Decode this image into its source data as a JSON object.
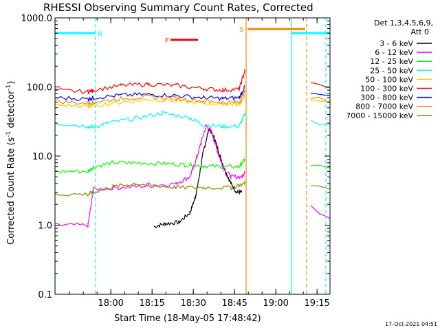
{
  "chart_data": {
    "type": "line",
    "title": "RHESSI Observing Summary Count Rates, Corrected",
    "xlabel": "Start Time (18-May-05 17:48:42)",
    "ylabel_main": "Corrected Count Rate (s",
    "ylabel_sup1": "-1",
    "ylabel_mid": " detector",
    "ylabel_sup2": "-1",
    "ylabel_end": ")",
    "y_scale": "log",
    "ylim": [
      0.1,
      1000
    ],
    "xlim": [
      -9,
      91
    ],
    "x_unit": "minutes after 17:48:42",
    "x_ticks": [
      {
        "v": 11.3,
        "label": "18:00"
      },
      {
        "v": 26.3,
        "label": "18:15"
      },
      {
        "v": 41.3,
        "label": "18:30"
      },
      {
        "v": 56.3,
        "label": "18:45"
      },
      {
        "v": 71.3,
        "label": "19:00"
      },
      {
        "v": 86.3,
        "label": "19:15"
      }
    ],
    "y_ticks": [
      {
        "v": 0.1,
        "label": "0.1"
      },
      {
        "v": 1,
        "label": "1.0"
      },
      {
        "v": 10,
        "label": "10.0"
      },
      {
        "v": 100,
        "label": "100.0"
      },
      {
        "v": 1000,
        "label": "1000.0"
      }
    ],
    "legend_header": [
      "Det 1,3,4,5,6,9,",
      "Att 0"
    ],
    "series": [
      {
        "name": "3 - 6 keV",
        "color": "#000000",
        "points": [
          [
            27,
            0.95
          ],
          [
            31,
            1.05
          ],
          [
            36,
            1.1
          ],
          [
            40,
            1.5
          ],
          [
            42,
            2.5
          ],
          [
            43,
            4
          ],
          [
            45,
            12
          ],
          [
            47,
            25
          ],
          [
            49,
            18
          ],
          [
            51,
            10
          ],
          [
            53,
            6
          ],
          [
            55,
            4
          ],
          [
            57,
            3
          ],
          [
            59,
            3
          ]
        ]
      },
      {
        "name": "6 - 12 keV",
        "color": "#ff00ff",
        "points": [
          [
            -9,
            1.0
          ],
          [
            3,
            1.0
          ],
          [
            5,
            3.3
          ],
          [
            15,
            3.5
          ],
          [
            25,
            3.7
          ],
          [
            35,
            4
          ],
          [
            40,
            5
          ],
          [
            42,
            8
          ],
          [
            44,
            15
          ],
          [
            46,
            28
          ],
          [
            48,
            22
          ],
          [
            50,
            12
          ],
          [
            52,
            7
          ],
          [
            55,
            5
          ],
          [
            59,
            5
          ],
          [
            60,
            6
          ],
          [
            96,
            1.0
          ],
          [
            100,
            1.0
          ]
        ]
      },
      {
        "name": "12 - 25 keV",
        "color": "#00ff00",
        "points": [
          [
            -9,
            6
          ],
          [
            3,
            6
          ],
          [
            5,
            7
          ],
          [
            12,
            8
          ],
          [
            20,
            8
          ],
          [
            30,
            7.8
          ],
          [
            38,
            7.5
          ],
          [
            45,
            7.2
          ],
          [
            52,
            7
          ],
          [
            58,
            7
          ],
          [
            60,
            9
          ],
          [
            96,
            6.5
          ],
          [
            100,
            6
          ]
        ]
      },
      {
        "name": "25 - 50 keV",
        "color": "#00ffff",
        "points": [
          [
            -9,
            30
          ],
          [
            3,
            27
          ],
          [
            5,
            26
          ],
          [
            10,
            30
          ],
          [
            20,
            35
          ],
          [
            30,
            42
          ],
          [
            40,
            36
          ],
          [
            45,
            28
          ],
          [
            52,
            27
          ],
          [
            58,
            27
          ],
          [
            60,
            40
          ],
          [
            96,
            28
          ],
          [
            100,
            25
          ]
        ]
      },
      {
        "name": "50 - 100 keV",
        "color": "#ffcc00",
        "points": [
          [
            -9,
            55
          ],
          [
            3,
            52
          ],
          [
            5,
            54
          ],
          [
            15,
            60
          ],
          [
            25,
            66
          ],
          [
            35,
            63
          ],
          [
            45,
            58
          ],
          [
            52,
            57
          ],
          [
            58,
            56
          ],
          [
            60,
            75
          ],
          [
            96,
            55
          ],
          [
            100,
            52
          ]
        ]
      },
      {
        "name": "100 - 300 keV",
        "color": "#ff0000",
        "points": [
          [
            -9,
            90
          ],
          [
            3,
            85
          ],
          [
            5,
            90
          ],
          [
            15,
            105
          ],
          [
            25,
            110
          ],
          [
            35,
            105
          ],
          [
            45,
            95
          ],
          [
            52,
            90
          ],
          [
            58,
            93
          ],
          [
            60,
            170
          ],
          [
            96,
            92
          ],
          [
            100,
            85
          ]
        ]
      },
      {
        "name": "300 - 800 keV",
        "color": "#0000ff",
        "points": [
          [
            -9,
            70
          ],
          [
            3,
            67
          ],
          [
            5,
            70
          ],
          [
            15,
            76
          ],
          [
            25,
            78
          ],
          [
            35,
            75
          ],
          [
            45,
            70
          ],
          [
            52,
            68
          ],
          [
            58,
            70
          ],
          [
            60,
            100
          ],
          [
            96,
            70
          ],
          [
            100,
            65
          ]
        ]
      },
      {
        "name": "800 - 7000 keV",
        "color": "#ff8800",
        "points": [
          [
            -9,
            62
          ],
          [
            3,
            58
          ],
          [
            5,
            60
          ],
          [
            15,
            68
          ],
          [
            25,
            72
          ],
          [
            35,
            68
          ],
          [
            45,
            63
          ],
          [
            52,
            60
          ],
          [
            58,
            60
          ],
          [
            60,
            85
          ],
          [
            96,
            62
          ],
          [
            100,
            58
          ]
        ]
      },
      {
        "name": "7000 - 15000 keV",
        "color": "#888800",
        "points": [
          [
            -9,
            2.8
          ],
          [
            3,
            2.8
          ],
          [
            5,
            3
          ],
          [
            12,
            3.6
          ],
          [
            20,
            4
          ],
          [
            28,
            3.7
          ],
          [
            35,
            3.5
          ],
          [
            45,
            3.5
          ],
          [
            55,
            3.5
          ],
          [
            60,
            4
          ],
          [
            96,
            3.5
          ],
          [
            100,
            3
          ]
        ]
      }
    ],
    "flag_bars": [
      {
        "label": "N",
        "color": "#00ffff",
        "y": 600,
        "x0": -9,
        "x1": 5.7,
        "label_x": 6.5
      },
      {
        "label": "N",
        "color": "#00ffff",
        "y": 600,
        "x0": 77,
        "x1": 91,
        "label_x": null
      },
      {
        "label": "F",
        "color": "#ff0000",
        "y": 480,
        "x0": 33,
        "x1": 43,
        "label_x": 31
      },
      {
        "label": "S",
        "color": "#ff8800",
        "y": 690,
        "x0": 61,
        "x1": 82,
        "label_x": 58
      }
    ],
    "vlines": [
      {
        "x": -9,
        "color": "#00ffff",
        "dash": false
      },
      {
        "x": 5.7,
        "color": "#00ffff",
        "dash": true
      },
      {
        "x": 60.5,
        "color": "#ff8800",
        "dash": false
      },
      {
        "x": 77,
        "color": "#00ffff",
        "dash": false
      },
      {
        "x": 82.5,
        "color": "#ff8800",
        "dash": true
      },
      {
        "x": 89.5,
        "color": "#00ffff",
        "dash": true
      }
    ],
    "gap": [
      60.5,
      91
    ],
    "footer": "17-Oct-2021 04:51"
  }
}
